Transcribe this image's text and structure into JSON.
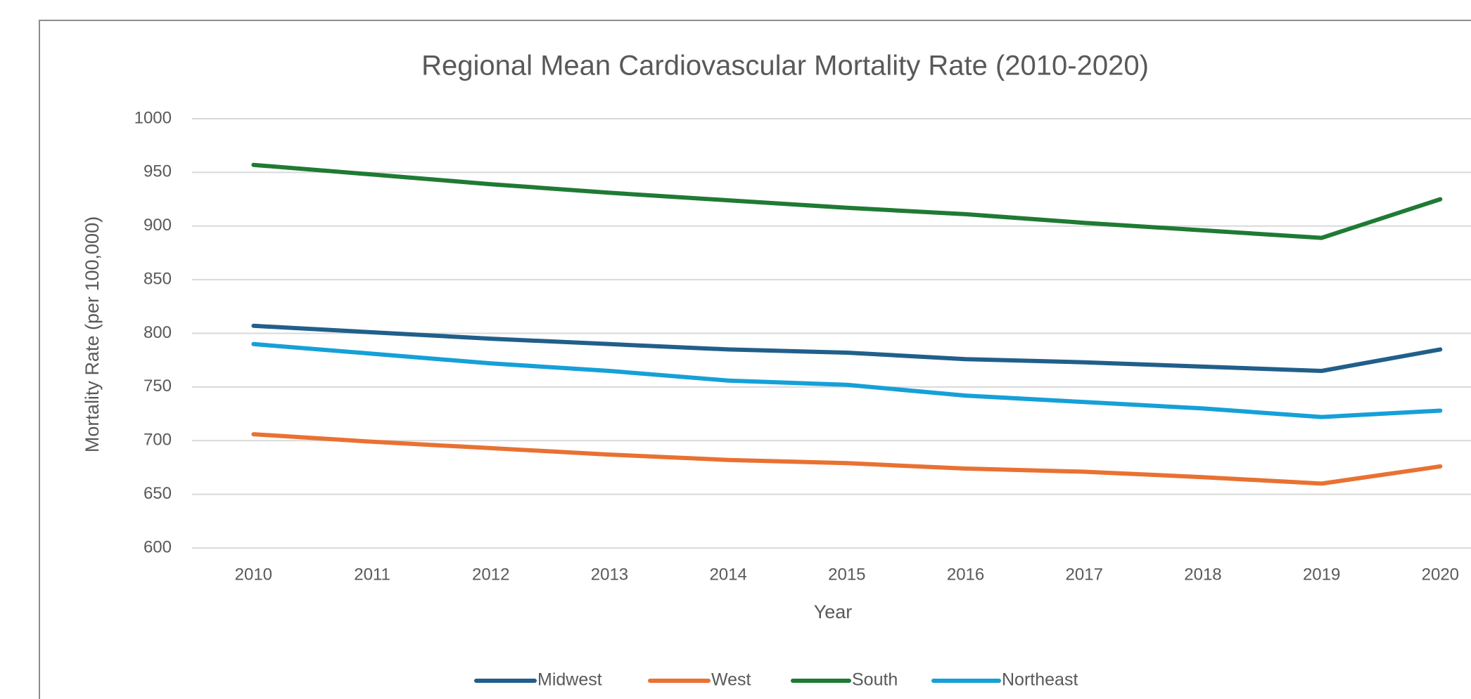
{
  "chart_data": {
    "type": "line",
    "title": "Regional Mean Cardiovascular Mortality Rate (2010-2020)",
    "x_label": "Year",
    "y_label": "Mortality Rate (per 100,000)",
    "categories": [
      "2010",
      "2011",
      "2012",
      "2013",
      "2014",
      "2015",
      "2016",
      "2017",
      "2018",
      "2019",
      "2020"
    ],
    "series": [
      {
        "name": "Midwest",
        "color": "#215f8a",
        "values": [
          807,
          801,
          795,
          790,
          785,
          782,
          776,
          773,
          769,
          765,
          785
        ]
      },
      {
        "name": "West",
        "color": "#e97132",
        "values": [
          706,
          699,
          693,
          687,
          682,
          679,
          674,
          671,
          666,
          660,
          676
        ]
      },
      {
        "name": "South",
        "color": "#1f7a33",
        "values": [
          957,
          948,
          939,
          931,
          924,
          917,
          911,
          903,
          896,
          889,
          925
        ]
      },
      {
        "name": "Northeast",
        "color": "#15a0d8",
        "values": [
          790,
          781,
          772,
          765,
          756,
          752,
          742,
          736,
          730,
          722,
          728
        ]
      }
    ],
    "ylim": [
      600,
      1000
    ],
    "yticks": [
      600,
      650,
      700,
      750,
      800,
      850,
      900,
      950,
      1000
    ],
    "grid": true,
    "legend": "bottom"
  }
}
